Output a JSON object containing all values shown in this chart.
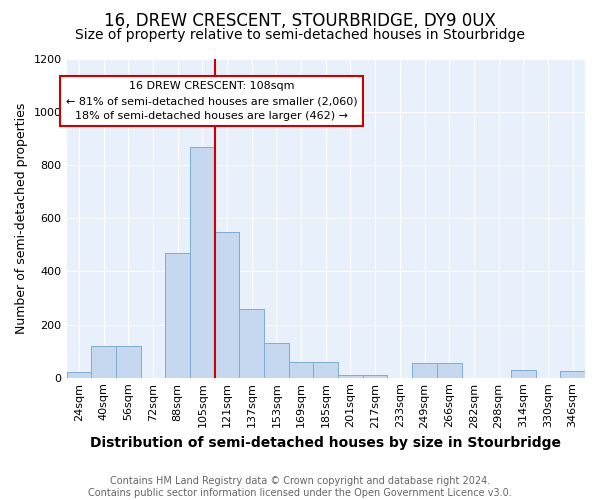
{
  "title": "16, DREW CRESCENT, STOURBRIDGE, DY9 0UX",
  "subtitle": "Size of property relative to semi-detached houses in Stourbridge",
  "xlabel": "Distribution of semi-detached houses by size in Stourbridge",
  "ylabel": "Number of semi-detached properties",
  "bins": [
    "24sqm",
    "40sqm",
    "56sqm",
    "72sqm",
    "88sqm",
    "105sqm",
    "121sqm",
    "137sqm",
    "153sqm",
    "169sqm",
    "185sqm",
    "201sqm",
    "217sqm",
    "233sqm",
    "249sqm",
    "266sqm",
    "282sqm",
    "298sqm",
    "314sqm",
    "330sqm",
    "346sqm"
  ],
  "values": [
    20,
    120,
    120,
    0,
    470,
    870,
    550,
    260,
    130,
    60,
    60,
    10,
    10,
    0,
    55,
    55,
    0,
    0,
    30,
    0,
    25
  ],
  "property_bin_index": 5,
  "annotation_title": "16 DREW CRESCENT: 108sqm",
  "annotation_line1": "← 81% of semi-detached houses are smaller (2,060)",
  "annotation_line2": "18% of semi-detached houses are larger (462) →",
  "bar_color": "#C5D8F0",
  "bar_edge_color": "#7BADD4",
  "highlight_color": "#CC0000",
  "annotation_box_color": "#FFFFFF",
  "annotation_box_edge": "#CC0000",
  "background_color": "#FFFFFF",
  "axes_bg_color": "#E8F0FB",
  "ylim": [
    0,
    1200
  ],
  "yticks": [
    0,
    200,
    400,
    600,
    800,
    1000,
    1200
  ],
  "footer": "Contains HM Land Registry data © Crown copyright and database right 2024.\nContains public sector information licensed under the Open Government Licence v3.0.",
  "title_fontsize": 12,
  "subtitle_fontsize": 10,
  "xlabel_fontsize": 10,
  "ylabel_fontsize": 9,
  "tick_fontsize": 8,
  "annotation_fontsize": 8,
  "footer_fontsize": 7
}
